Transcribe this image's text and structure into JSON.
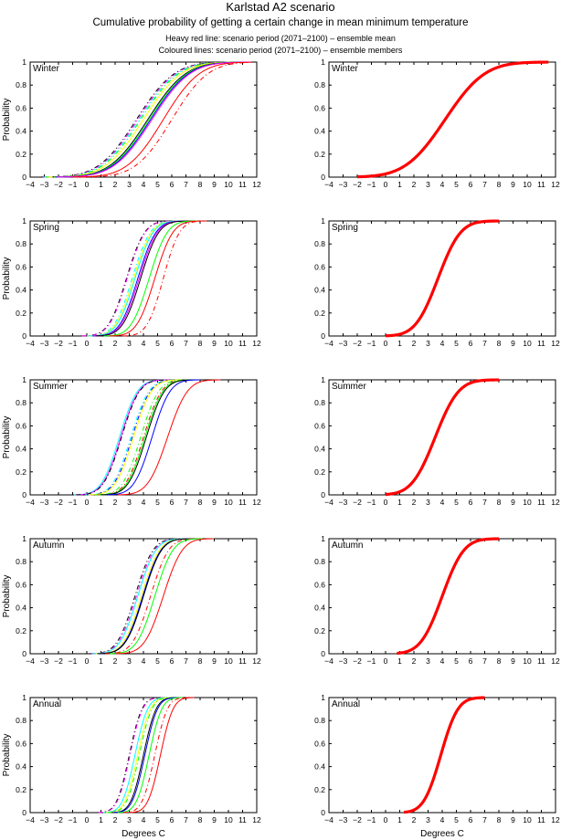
{
  "header": {
    "title": "Karlstad A2 scenario",
    "subtitle": "Cumulative probability of getting a certain change in mean minimum temperature",
    "note1": "Heavy red line: scenario period (2071–2100) – ensemble mean",
    "note2": "Coloured lines: scenario period (2071–2100) – ensemble members"
  },
  "chart_data": {
    "type": "line",
    "title": "Karlstad A2 scenario",
    "xlabel": "Degrees C",
    "ylabel": "Probability",
    "xlim": [
      -4,
      12
    ],
    "ylim": [
      0,
      1
    ],
    "x_ticks": [
      "−4",
      "−3",
      "−2",
      "−1",
      "0",
      "1",
      "2",
      "3",
      "4",
      "5",
      "6",
      "7",
      "8",
      "9",
      "10",
      "11",
      "12"
    ],
    "y_ticks": [
      "0",
      "0.2",
      "0.4",
      "0.6",
      "0.8",
      "1"
    ],
    "grid": false,
    "legend": "none",
    "curve_model": "normal CDF; mean and sd in degrees C",
    "panels": [
      {
        "season": "Winter",
        "ensemble_mean": {
          "color": "#ff0000",
          "mean": 4.2,
          "sd": 2.2,
          "x_range": [
            -2,
            11.5
          ]
        },
        "members": [
          {
            "color": "#000000",
            "style": "dashdot",
            "mean": 3.5,
            "sd": 2.1
          },
          {
            "color": "#ff00ff",
            "style": "dashdot",
            "mean": 3.6,
            "sd": 2.1
          },
          {
            "color": "#00ffff",
            "style": "dashdot",
            "mean": 3.7,
            "sd": 2.1
          },
          {
            "color": "#00ff00",
            "style": "dashdot",
            "mean": 3.8,
            "sd": 2.1
          },
          {
            "color": "#ffff00",
            "style": "solid",
            "mean": 4.0,
            "sd": 2.1
          },
          {
            "color": "#000000",
            "style": "solid",
            "mean": 4.3,
            "sd": 2.1
          },
          {
            "color": "#00ff00",
            "style": "solid",
            "mean": 4.4,
            "sd": 2.1
          },
          {
            "color": "#0000ff",
            "style": "solid",
            "mean": 4.5,
            "sd": 2.1
          },
          {
            "color": "#ff00ff",
            "style": "solid",
            "mean": 4.6,
            "sd": 2.1
          },
          {
            "color": "#ff0000",
            "style": "solid",
            "mean": 5.4,
            "sd": 2.0
          },
          {
            "color": "#ff0000",
            "style": "dashdot",
            "mean": 6.0,
            "sd": 2.0
          }
        ]
      },
      {
        "season": "Spring",
        "ensemble_mean": {
          "color": "#ff0000",
          "mean": 3.7,
          "sd": 1.25,
          "x_range": [
            0,
            8
          ]
        },
        "members": [
          {
            "color": "#000000",
            "style": "dashdot",
            "mean": 2.8,
            "sd": 1.0
          },
          {
            "color": "#ff00ff",
            "style": "dashdot",
            "mean": 2.85,
            "sd": 1.0
          },
          {
            "color": "#00ffff",
            "style": "dashdot",
            "mean": 3.2,
            "sd": 1.0
          },
          {
            "color": "#ffff00",
            "style": "solid",
            "mean": 3.3,
            "sd": 1.0
          },
          {
            "color": "#00ffff",
            "style": "solid",
            "mean": 3.4,
            "sd": 1.0
          },
          {
            "color": "#0000ff",
            "style": "solid",
            "mean": 3.6,
            "sd": 1.0
          },
          {
            "color": "#ff00ff",
            "style": "solid",
            "mean": 3.7,
            "sd": 1.0
          },
          {
            "color": "#000000",
            "style": "solid",
            "mean": 3.8,
            "sd": 1.0
          },
          {
            "color": "#00ff00",
            "style": "solid",
            "mean": 4.4,
            "sd": 1.0
          },
          {
            "color": "#ff0000",
            "style": "solid",
            "mean": 4.8,
            "sd": 1.0
          },
          {
            "color": "#ff0000",
            "style": "dashdot",
            "mean": 5.4,
            "sd": 0.9
          }
        ]
      },
      {
        "season": "Summer",
        "ensemble_mean": {
          "color": "#ff0000",
          "mean": 3.5,
          "sd": 1.3,
          "x_range": [
            0,
            8
          ]
        },
        "members": [
          {
            "color": "#00ffff",
            "style": "solid",
            "mean": 2.3,
            "sd": 1.0
          },
          {
            "color": "#ff00ff",
            "style": "solid",
            "mean": 2.4,
            "sd": 1.0
          },
          {
            "color": "#000000",
            "style": "dashdot",
            "mean": 2.45,
            "sd": 1.0
          },
          {
            "color": "#00ffff",
            "style": "dashdot",
            "mean": 3.1,
            "sd": 1.0
          },
          {
            "color": "#0000ff",
            "style": "dashdot",
            "mean": 3.2,
            "sd": 1.0
          },
          {
            "color": "#ffff00",
            "style": "solid",
            "mean": 3.3,
            "sd": 1.0
          },
          {
            "color": "#00ff00",
            "style": "dashdot",
            "mean": 3.8,
            "sd": 1.0
          },
          {
            "color": "#ff0000",
            "style": "dashdot",
            "mean": 4.0,
            "sd": 1.0
          },
          {
            "color": "#00ff00",
            "style": "solid",
            "mean": 4.1,
            "sd": 1.0
          },
          {
            "color": "#000000",
            "style": "solid",
            "mean": 4.2,
            "sd": 1.0
          },
          {
            "color": "#0000ff",
            "style": "solid",
            "mean": 4.6,
            "sd": 1.0
          },
          {
            "color": "#ff0000",
            "style": "solid",
            "mean": 5.7,
            "sd": 1.1
          }
        ]
      },
      {
        "season": "Autumn",
        "ensemble_mean": {
          "color": "#ff0000",
          "mean": 4.0,
          "sd": 1.2,
          "x_range": [
            0.8,
            8
          ]
        },
        "members": [
          {
            "color": "#000000",
            "style": "dashdot",
            "mean": 3.4,
            "sd": 1.0
          },
          {
            "color": "#ff00ff",
            "style": "dashdot",
            "mean": 3.5,
            "sd": 1.0
          },
          {
            "color": "#00ffff",
            "style": "solid",
            "mean": 3.6,
            "sd": 1.0
          },
          {
            "color": "#ffff00",
            "style": "solid",
            "mean": 3.85,
            "sd": 1.0
          },
          {
            "color": "#0000ff",
            "style": "solid",
            "mean": 3.95,
            "sd": 1.0
          },
          {
            "color": "#000000",
            "style": "solid",
            "mean": 4.0,
            "sd": 1.0
          },
          {
            "color": "#ff0000",
            "style": "dashdot",
            "mean": 4.5,
            "sd": 1.0
          },
          {
            "color": "#00ff00",
            "style": "solid",
            "mean": 4.8,
            "sd": 1.0
          },
          {
            "color": "#ff0000",
            "style": "solid",
            "mean": 5.4,
            "sd": 1.05
          }
        ]
      },
      {
        "season": "Annual",
        "ensemble_mean": {
          "color": "#ff0000",
          "mean": 3.9,
          "sd": 0.95,
          "x_range": [
            1.3,
            7
          ]
        },
        "members": [
          {
            "color": "#000000",
            "style": "dashdot",
            "mean": 3.0,
            "sd": 0.7
          },
          {
            "color": "#ff00ff",
            "style": "dashdot",
            "mean": 3.05,
            "sd": 0.7
          },
          {
            "color": "#00ffff",
            "style": "solid",
            "mean": 3.4,
            "sd": 0.7
          },
          {
            "color": "#ffff00",
            "style": "solid",
            "mean": 3.6,
            "sd": 0.7
          },
          {
            "color": "#00ff00",
            "style": "dashdot",
            "mean": 3.7,
            "sd": 0.7
          },
          {
            "color": "#000000",
            "style": "solid",
            "mean": 4.0,
            "sd": 0.7
          },
          {
            "color": "#0000ff",
            "style": "solid",
            "mean": 4.1,
            "sd": 0.7
          },
          {
            "color": "#00ff00",
            "style": "solid",
            "mean": 4.4,
            "sd": 0.7
          },
          {
            "color": "#ff0000",
            "style": "dashdot",
            "mean": 4.8,
            "sd": 0.7
          },
          {
            "color": "#ff0000",
            "style": "solid",
            "mean": 5.2,
            "sd": 0.7
          }
        ]
      }
    ]
  }
}
